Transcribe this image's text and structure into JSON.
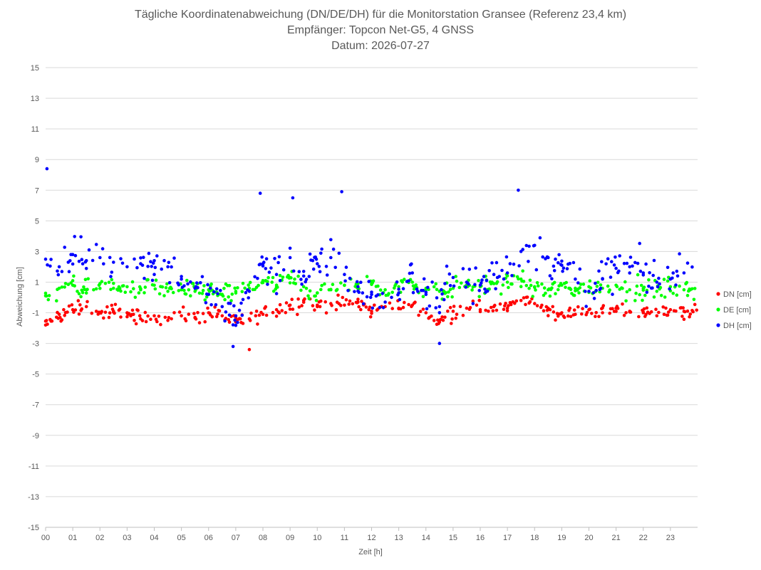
{
  "chart_data": {
    "type": "scatter",
    "title": "Tägliche Koordinatenabweichung (DN/DE/DH) für die Monitorstation Gransee (Referenz 23,4 km)",
    "subtitle": "Empfänger: Topcon Net-G5, 4 GNSS",
    "date_line": "Datum: 2026-07-27",
    "xlabel": "Zeit [h]",
    "ylabel": "Abweichung [cm]",
    "xlim": [
      0,
      24
    ],
    "ylim": [
      -15,
      15
    ],
    "x_ticks": [
      "00",
      "01",
      "02",
      "03",
      "04",
      "05",
      "06",
      "07",
      "08",
      "09",
      "10",
      "11",
      "12",
      "13",
      "14",
      "15",
      "16",
      "17",
      "18",
      "19",
      "20",
      "21",
      "22",
      "23"
    ],
    "y_ticks": [
      15,
      13,
      11,
      9,
      7,
      5,
      3,
      1,
      -1,
      -3,
      -5,
      -7,
      -9,
      -11,
      -13,
      -15
    ],
    "grid": "horizontal",
    "legend": "right",
    "series": [
      {
        "name": "DN [cm]",
        "color": "#ff0000",
        "x": [
          0,
          0.5,
          1,
          1.5,
          2,
          2.5,
          3,
          3.5,
          4,
          4.5,
          5,
          5.5,
          6,
          6.5,
          7,
          7.5,
          8,
          8.5,
          9,
          9.5,
          10,
          10.5,
          11,
          11.5,
          12,
          12.5,
          13,
          13.5,
          14,
          14.5,
          15,
          15.5,
          16,
          16.5,
          17,
          17.5,
          18,
          18.5,
          19,
          19.5,
          20,
          20.5,
          21,
          21.5,
          22,
          22.5,
          23,
          23.5
        ],
        "y": [
          -1.8,
          -1.1,
          -0.8,
          -0.6,
          -1.0,
          -0.9,
          -1.0,
          -1.4,
          -1.2,
          -1.5,
          -1.2,
          -1.3,
          -1.0,
          -1.2,
          -1.6,
          -1.4,
          -1.1,
          -0.8,
          -0.5,
          -0.2,
          -0.6,
          -0.4,
          -0.5,
          -0.3,
          -0.9,
          -0.6,
          -0.7,
          -0.5,
          -1.0,
          -1.6,
          -0.9,
          -0.7,
          -0.8,
          -0.6,
          -0.7,
          -0.2,
          -0.4,
          -0.7,
          -1.0,
          -1.1,
          -0.8,
          -1.0,
          -0.7,
          -0.9,
          -1.0,
          -1.2,
          -0.8,
          -0.9
        ]
      },
      {
        "name": "DE [cm]",
        "color": "#00ff00",
        "x": [
          0,
          0.5,
          1,
          1.5,
          2,
          2.5,
          3,
          3.5,
          4,
          4.5,
          5,
          5.5,
          6,
          6.5,
          7,
          7.5,
          8,
          8.5,
          9,
          9.5,
          10,
          10.5,
          11,
          11.5,
          12,
          12.5,
          13,
          13.5,
          14,
          14.5,
          15,
          15.5,
          16,
          16.5,
          17,
          17.5,
          18,
          18.5,
          19,
          19.5,
          20,
          20.5,
          21,
          21.5,
          22,
          22.5,
          23,
          23.5
        ],
        "y": [
          0.1,
          0.6,
          0.8,
          0.5,
          0.9,
          0.6,
          0.7,
          0.5,
          0.8,
          0.4,
          0.5,
          0.4,
          0.5,
          0.2,
          0.4,
          0.6,
          1.1,
          0.7,
          1.3,
          0.7,
          0.3,
          0.5,
          0.8,
          0.6,
          0.9,
          0.5,
          0.7,
          1.0,
          0.5,
          0.4,
          0.6,
          0.8,
          0.7,
          0.9,
          1.0,
          1.2,
          0.7,
          0.5,
          0.8,
          0.6,
          0.7,
          0.6,
          0.8,
          0.5,
          0.6,
          0.4,
          0.7,
          0.5
        ]
      },
      {
        "name": "DH [cm]",
        "color": "#0000ff",
        "x": [
          0,
          0.5,
          1,
          1.5,
          2,
          2.5,
          3,
          3.5,
          4,
          4.5,
          5,
          5.5,
          6,
          6.5,
          7,
          7.5,
          8,
          8.5,
          9,
          9.5,
          10,
          10.5,
          11,
          11.5,
          12,
          12.5,
          13,
          13.5,
          14,
          14.5,
          15,
          15.5,
          16,
          16.5,
          17,
          17.5,
          18,
          18.5,
          19,
          19.5,
          20,
          20.5,
          21,
          21.5,
          22,
          22.5,
          23,
          23.5
        ],
        "y": [
          2.5,
          2.0,
          2.8,
          2.4,
          2.6,
          2.3,
          2.0,
          2.2,
          2.4,
          2.0,
          1.2,
          0.6,
          0.2,
          -0.6,
          -1.2,
          0.4,
          2.2,
          1.5,
          2.6,
          1.4,
          2.2,
          2.6,
          1.5,
          0.7,
          0.2,
          -0.3,
          0.3,
          1.6,
          0.2,
          -0.6,
          1.3,
          1.0,
          0.8,
          1.5,
          1.6,
          3.0,
          3.4,
          2.6,
          2.1,
          1.2,
          0.4,
          1.2,
          1.9,
          2.0,
          1.6,
          1.0,
          1.2,
          1.6
        ]
      }
    ],
    "notable_points": [
      {
        "series": "DH [cm]",
        "x": 0.05,
        "y": 8.4
      },
      {
        "series": "DH [cm]",
        "x": 7.9,
        "y": 6.8
      },
      {
        "series": "DH [cm]",
        "x": 9.1,
        "y": 6.5
      },
      {
        "series": "DH [cm]",
        "x": 10.9,
        "y": 6.9
      },
      {
        "series": "DH [cm]",
        "x": 17.4,
        "y": 7.0
      },
      {
        "series": "DH [cm]",
        "x": 6.9,
        "y": -3.2
      },
      {
        "series": "DH [cm]",
        "x": 14.5,
        "y": -3.0
      },
      {
        "series": "DN [cm]",
        "x": 7.5,
        "y": -3.4
      }
    ]
  }
}
